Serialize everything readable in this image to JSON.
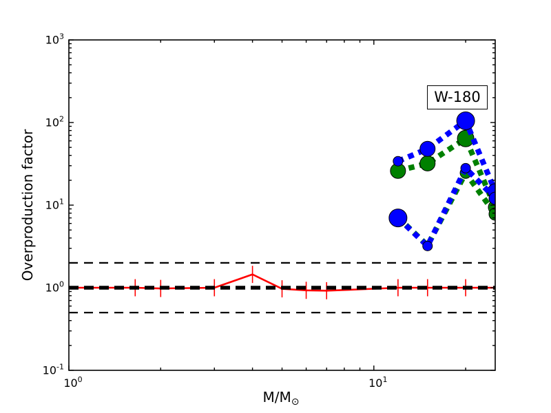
{
  "chart_data": {
    "type": "line",
    "title": "",
    "annotation": "W-180",
    "xlabel_main": "M/M",
    "xlabel_sub": "⊙",
    "ylabel": "Overproduction factor",
    "xscale": "log",
    "yscale": "log",
    "xlim": [
      1,
      25
    ],
    "ylim": [
      0.1,
      1000
    ],
    "grid": false,
    "legend": "none",
    "x_minor_ticks": [
      2,
      3,
      4,
      5,
      6,
      7,
      8,
      9,
      20
    ],
    "x_tick_labels": [
      {
        "base": "10",
        "exp": "0",
        "value": 1
      },
      {
        "base": "10",
        "exp": "1",
        "value": 10
      }
    ],
    "y_minor_tick_multiples": [
      2,
      3,
      4,
      5,
      6,
      7,
      8,
      9
    ],
    "y_tick_labels": [
      {
        "base": "10",
        "exp": "-1",
        "value": 0.1
      },
      {
        "base": "10",
        "exp": "0",
        "value": 1
      },
      {
        "base": "10",
        "exp": "1",
        "value": 10
      },
      {
        "base": "10",
        "exp": "2",
        "value": 100
      },
      {
        "base": "10",
        "exp": "3",
        "value": 1000
      }
    ],
    "reference_lines": [
      {
        "name": "factor-2-upper",
        "y": 2,
        "color": "#000000",
        "width": 2.2,
        "dash": [
          13,
          9
        ]
      },
      {
        "name": "unity",
        "y": 1,
        "color": "#000000",
        "width": 5.5,
        "dash": [
          14,
          8
        ]
      },
      {
        "name": "factor-2-lower",
        "y": 0.5,
        "color": "#000000",
        "width": 2.2,
        "dash": [
          13,
          9
        ]
      }
    ],
    "series": [
      {
        "name": "red-low-mass-models",
        "color": "#ff0000",
        "style": "solid",
        "width": 2.6,
        "marker": "none",
        "x": [
          1,
          1.65,
          2,
          3,
          4,
          5,
          6,
          7,
          12,
          15,
          20,
          25
        ],
        "y": [
          1.0,
          1.0,
          0.98,
          1.0,
          1.45,
          0.97,
          0.93,
          0.92,
          1.0,
          1.0,
          1.0,
          1.0
        ],
        "error_bar_x": [
          1.65,
          2,
          3,
          4,
          5,
          6,
          7,
          12,
          15,
          20
        ],
        "error_bar_factor": 1.27
      },
      {
        "name": "green-massive-upper",
        "color": "#008000",
        "style": "dashed",
        "width": 8,
        "dash": [
          8.5,
          7.5
        ],
        "marker": "circle",
        "x": [
          12,
          15,
          20,
          25
        ],
        "y": [
          26,
          32,
          64,
          9.4
        ],
        "marker_r": [
          11,
          11,
          12,
          10
        ]
      },
      {
        "name": "blue-massive-upper",
        "color": "#0000ff",
        "style": "dashed",
        "width": 8,
        "dash": [
          8.5,
          7.5
        ],
        "marker": "circle",
        "x": [
          12,
          15,
          20,
          25
        ],
        "y": [
          34,
          48,
          105,
          14.7
        ],
        "marker_r": [
          7,
          11,
          13,
          11
        ]
      },
      {
        "name": "green-massive-lower",
        "color": "#008000",
        "style": "dashed",
        "width": 8,
        "dash": [
          8.5,
          7.5
        ],
        "marker": "circle",
        "x": [
          12,
          15,
          20,
          25
        ],
        "y": [
          7.1,
          3.25,
          24.5,
          7.8
        ],
        "marker_r": [
          10,
          6,
          8,
          9
        ]
      },
      {
        "name": "blue-massive-lower",
        "color": "#0000ff",
        "style": "dashed",
        "width": 8,
        "dash": [
          8.5,
          7.5
        ],
        "marker": "circle",
        "x": [
          12,
          15,
          20,
          25
        ],
        "y": [
          7.0,
          3.2,
          28,
          12.1
        ],
        "marker_r": [
          13,
          7,
          7,
          9
        ]
      }
    ]
  }
}
